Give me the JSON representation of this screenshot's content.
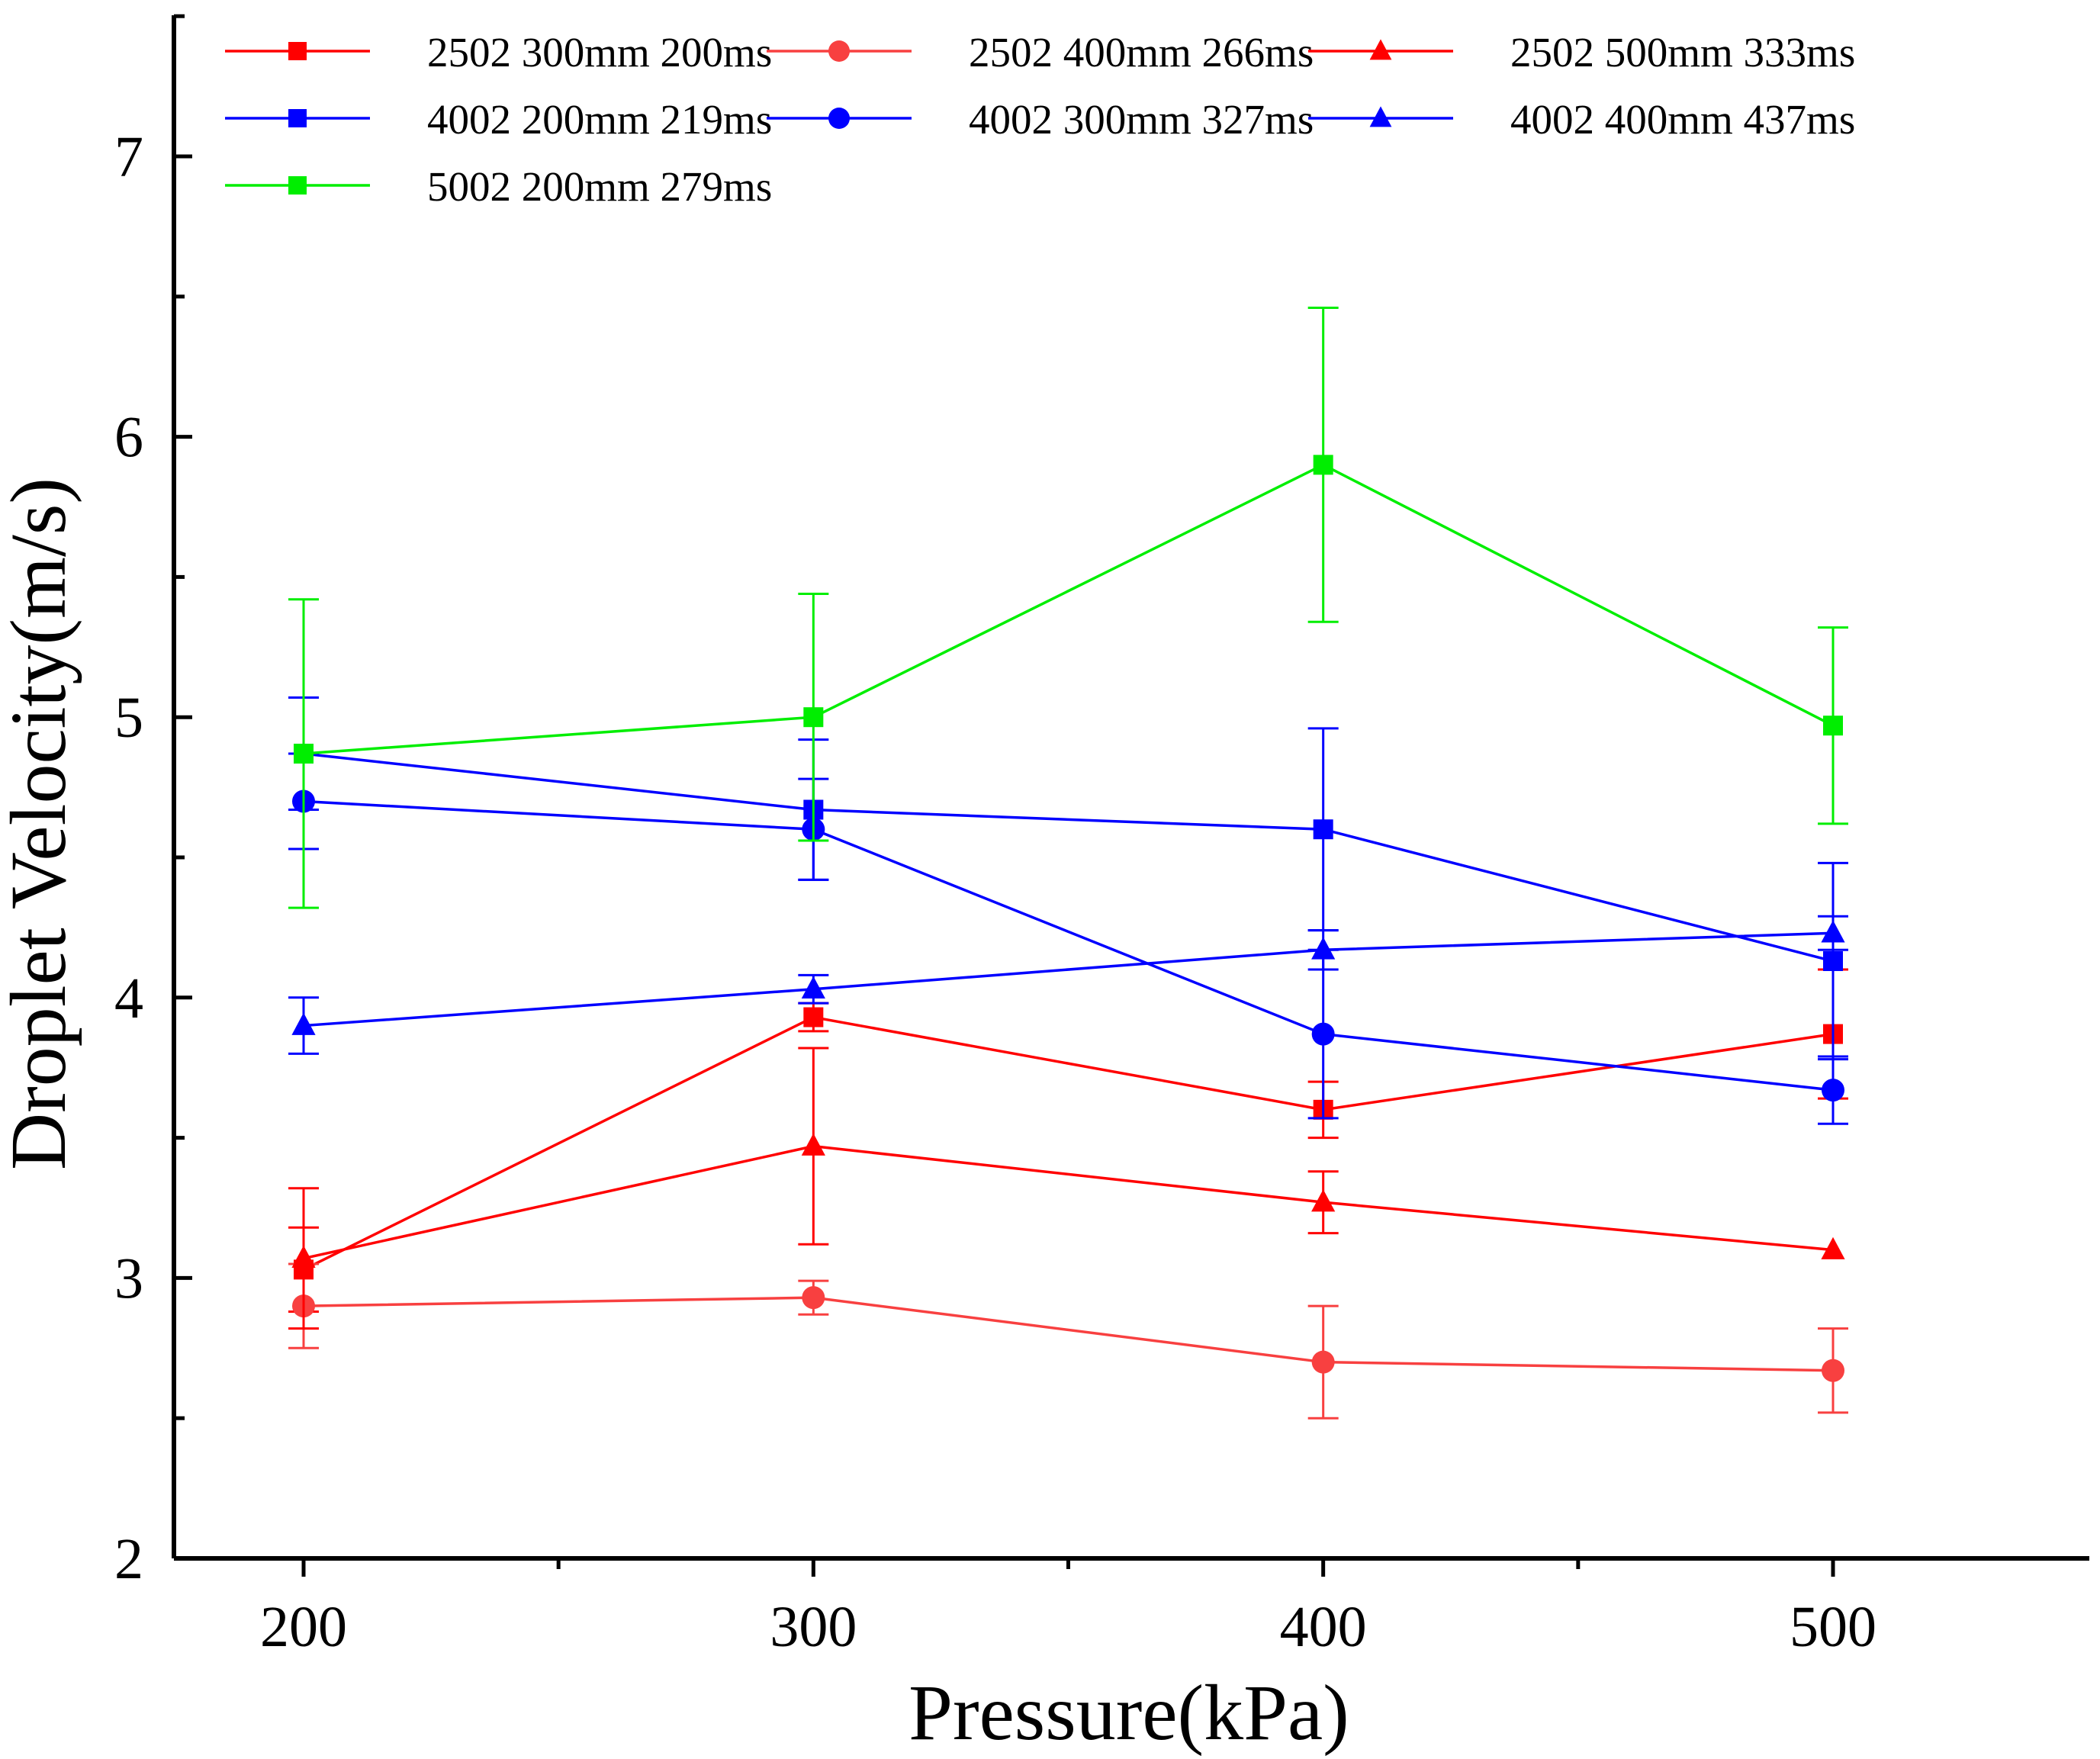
{
  "chart_data": {
    "type": "line",
    "title": "",
    "xlabel": "Pressure(kPa)",
    "ylabel": "Droplet Velocity(m/s)",
    "xlim": [
      175,
      550
    ],
    "ylim": [
      2,
      7.5
    ],
    "x_ticks": [
      200,
      300,
      400,
      500
    ],
    "x_tick_labels": [
      "200",
      "300",
      "400",
      "500"
    ],
    "x_minor_ticks": [
      250,
      350,
      450
    ],
    "y_ticks": [
      2,
      3,
      4,
      5,
      6,
      7
    ],
    "y_tick_labels": [
      "2",
      "3",
      "4",
      "5",
      "6",
      "7"
    ],
    "y_minor_ticks": [
      2.5,
      3.5,
      4.5,
      5.5,
      6.5,
      7.5
    ],
    "grid": false,
    "legend_position": "top",
    "x": [
      200,
      300,
      400,
      500
    ],
    "series": [
      {
        "name": "2502 300mm 200ms",
        "color": "#ff0000",
        "marker": "square",
        "values": [
          3.03,
          3.93,
          3.6,
          3.87
        ],
        "errors": [
          0.15,
          0.05,
          0.1,
          0.23
        ]
      },
      {
        "name": "2502 400mm 266ms",
        "color": "#f84040",
        "marker": "circle",
        "values": [
          2.9,
          2.93,
          2.7,
          2.67
        ],
        "errors": [
          0.15,
          0.06,
          0.2,
          0.15
        ]
      },
      {
        "name": "2502 500mm 333ms",
        "color": "#ff0000",
        "marker": "triangle",
        "values": [
          3.07,
          3.47,
          3.27,
          3.1
        ],
        "errors": [
          0.25,
          0.35,
          0.11,
          0.0
        ]
      },
      {
        "name": "4002 200mm 219ms",
        "color": "#0000ff",
        "marker": "square",
        "values": [
          4.87,
          4.67,
          4.6,
          4.13
        ],
        "errors": [
          0.2,
          0.25,
          0.36,
          0.35
        ]
      },
      {
        "name": "4002 300mm 327ms",
        "color": "#0000ff",
        "marker": "circle",
        "values": [
          4.7,
          4.6,
          3.87,
          3.67
        ],
        "errors": [
          0.17,
          0.18,
          0.3,
          0.12
        ]
      },
      {
        "name": "4002 400mm 437ms",
        "color": "#0000ff",
        "marker": "triangle",
        "values": [
          3.9,
          4.03,
          4.17,
          4.23
        ],
        "errors": [
          0.1,
          0.05,
          0.07,
          0.06
        ]
      },
      {
        "name": "5002 200mm 279ms",
        "color": "#00ee00",
        "marker": "square",
        "values": [
          4.87,
          5.0,
          5.9,
          4.97
        ],
        "errors": [
          0.55,
          0.44,
          0.56,
          0.35
        ]
      }
    ]
  }
}
